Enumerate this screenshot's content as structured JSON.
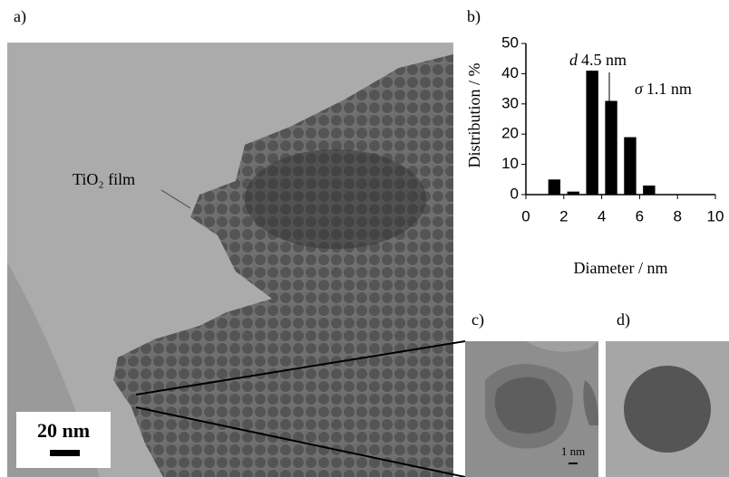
{
  "panels": {
    "a": {
      "label": "a)",
      "annotation": "TiO₂ film",
      "scale_bar": "20 nm"
    },
    "b": {
      "label": "b)"
    },
    "c": {
      "label": "c)",
      "scale_bar": "1 nm"
    },
    "d": {
      "label": "d)"
    }
  },
  "chart_data": {
    "type": "bar",
    "x": [
      1.5,
      2.5,
      3.5,
      4.5,
      5.5,
      6.5
    ],
    "values": [
      5,
      1,
      41,
      31,
      19,
      3
    ],
    "color": "#000000",
    "xlabel": "Diameter / nm",
    "ylabel": "Distribution / %",
    "xlim": [
      0,
      10
    ],
    "xticks": [
      0,
      2,
      4,
      6,
      8,
      10
    ],
    "ylim": [
      0,
      50
    ],
    "yticks": [
      0,
      10,
      20,
      30,
      40,
      50
    ],
    "annotations": [
      {
        "symbol": "d",
        "text": "4.5 nm"
      },
      {
        "symbol": "σ",
        "text": "1.1 nm"
      }
    ]
  }
}
